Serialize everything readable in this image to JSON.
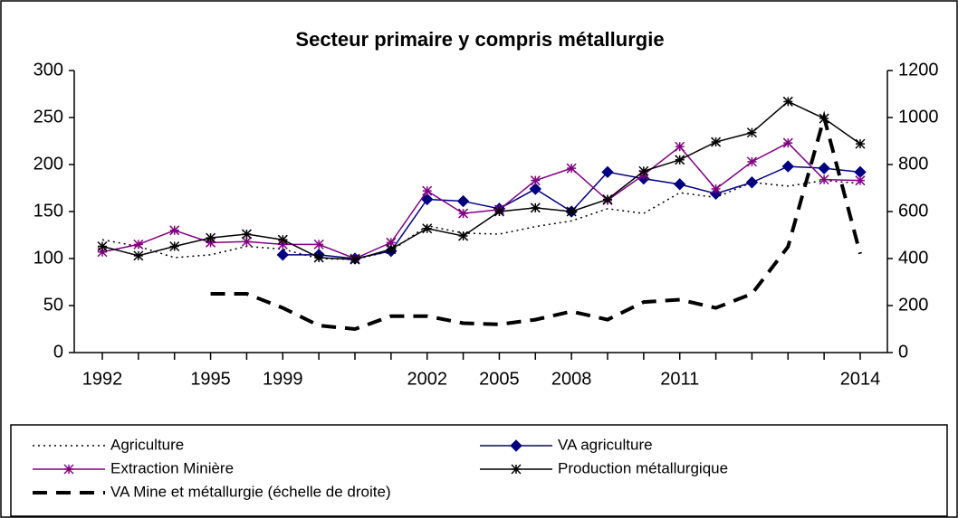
{
  "chart_data": {
    "type": "line",
    "title": "Secteur primaire y compris métallurgie",
    "categories": [
      "1992",
      null,
      null,
      "1995",
      null,
      "1999",
      null,
      null,
      null,
      "2002",
      null,
      "2005",
      null,
      "2008",
      null,
      null,
      "2011",
      null,
      null,
      null,
      null,
      "2014"
    ],
    "ylim": [
      0,
      300
    ],
    "yticks": [
      0,
      50,
      100,
      150,
      200,
      250,
      300
    ],
    "y2lim": [
      0,
      1200
    ],
    "y2ticks": [
      0,
      200,
      400,
      600,
      800,
      1000,
      1200
    ],
    "series": [
      {
        "name": "Agriculture",
        "color": "#000000",
        "line_style": "dotted",
        "marker": "none",
        "values": [
          120,
          113,
          101,
          104,
          113,
          110,
          100,
          99,
          108,
          135,
          127,
          126,
          134,
          140,
          153,
          148,
          170,
          165,
          181,
          177,
          183,
          180
        ]
      },
      {
        "name": "VA agriculture",
        "color": "#000080",
        "line_style": "solid",
        "marker": "diamond",
        "values": [
          null,
          null,
          null,
          null,
          null,
          104,
          104,
          100,
          108,
          163,
          161,
          153,
          174,
          150,
          192,
          185,
          179,
          169,
          181,
          198,
          196,
          192
        ]
      },
      {
        "name": "Extraction Minière",
        "color": "#800080",
        "line_style": "solid",
        "marker": "star",
        "values": [
          107,
          115,
          130,
          117,
          118,
          115,
          115,
          100,
          117,
          172,
          148,
          152,
          183,
          196,
          162,
          189,
          219,
          174,
          203,
          223,
          184,
          183
        ]
      },
      {
        "name": "Production métallurgique",
        "color": "#000000",
        "line_style": "solid",
        "marker": "star",
        "values": [
          113,
          103,
          113,
          122,
          126,
          120,
          101,
          99,
          110,
          132,
          124,
          150,
          154,
          150,
          163,
          193,
          205,
          224,
          234,
          267,
          249,
          222
        ]
      },
      {
        "name": "VA Mine et métallurgie (échelle de droite)",
        "color": "#000000",
        "line_style": "dashed",
        "marker": "none",
        "axis": "y2",
        "values": [
          null,
          null,
          null,
          250,
          250,
          190,
          115,
          100,
          155,
          155,
          125,
          120,
          140,
          175,
          140,
          215,
          225,
          190,
          250,
          450,
          1000,
          420
        ]
      }
    ]
  }
}
